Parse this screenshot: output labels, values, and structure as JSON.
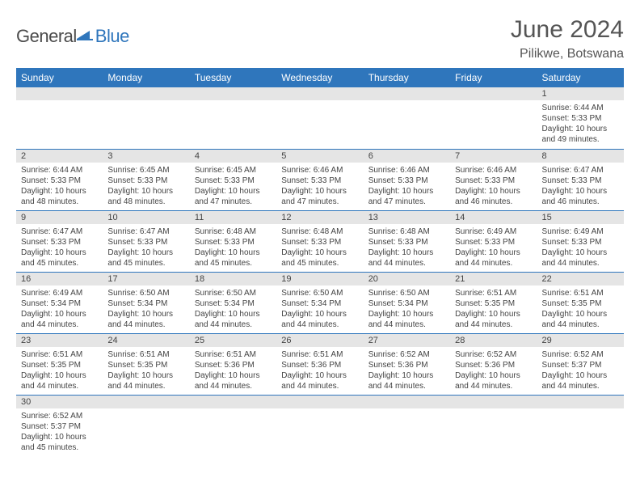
{
  "logo": {
    "part1": "General",
    "part2": "Blue"
  },
  "title": "June 2024",
  "location": "Pilikwe, Botswana",
  "colors": {
    "header_bg": "#2f76bc",
    "header_text": "#ffffff",
    "daynum_bg": "#e5e5e5",
    "cell_border": "#2f76bc",
    "text": "#444444"
  },
  "weekdays": [
    "Sunday",
    "Monday",
    "Tuesday",
    "Wednesday",
    "Thursday",
    "Friday",
    "Saturday"
  ],
  "weeks": [
    [
      {
        "n": "",
        "lines": [
          "",
          "",
          "",
          ""
        ]
      },
      {
        "n": "",
        "lines": [
          "",
          "",
          "",
          ""
        ]
      },
      {
        "n": "",
        "lines": [
          "",
          "",
          "",
          ""
        ]
      },
      {
        "n": "",
        "lines": [
          "",
          "",
          "",
          ""
        ]
      },
      {
        "n": "",
        "lines": [
          "",
          "",
          "",
          ""
        ]
      },
      {
        "n": "",
        "lines": [
          "",
          "",
          "",
          ""
        ]
      },
      {
        "n": "1",
        "lines": [
          "Sunrise: 6:44 AM",
          "Sunset: 5:33 PM",
          "Daylight: 10 hours",
          "and 49 minutes."
        ]
      }
    ],
    [
      {
        "n": "2",
        "lines": [
          "Sunrise: 6:44 AM",
          "Sunset: 5:33 PM",
          "Daylight: 10 hours",
          "and 48 minutes."
        ]
      },
      {
        "n": "3",
        "lines": [
          "Sunrise: 6:45 AM",
          "Sunset: 5:33 PM",
          "Daylight: 10 hours",
          "and 48 minutes."
        ]
      },
      {
        "n": "4",
        "lines": [
          "Sunrise: 6:45 AM",
          "Sunset: 5:33 PM",
          "Daylight: 10 hours",
          "and 47 minutes."
        ]
      },
      {
        "n": "5",
        "lines": [
          "Sunrise: 6:46 AM",
          "Sunset: 5:33 PM",
          "Daylight: 10 hours",
          "and 47 minutes."
        ]
      },
      {
        "n": "6",
        "lines": [
          "Sunrise: 6:46 AM",
          "Sunset: 5:33 PM",
          "Daylight: 10 hours",
          "and 47 minutes."
        ]
      },
      {
        "n": "7",
        "lines": [
          "Sunrise: 6:46 AM",
          "Sunset: 5:33 PM",
          "Daylight: 10 hours",
          "and 46 minutes."
        ]
      },
      {
        "n": "8",
        "lines": [
          "Sunrise: 6:47 AM",
          "Sunset: 5:33 PM",
          "Daylight: 10 hours",
          "and 46 minutes."
        ]
      }
    ],
    [
      {
        "n": "9",
        "lines": [
          "Sunrise: 6:47 AM",
          "Sunset: 5:33 PM",
          "Daylight: 10 hours",
          "and 45 minutes."
        ]
      },
      {
        "n": "10",
        "lines": [
          "Sunrise: 6:47 AM",
          "Sunset: 5:33 PM",
          "Daylight: 10 hours",
          "and 45 minutes."
        ]
      },
      {
        "n": "11",
        "lines": [
          "Sunrise: 6:48 AM",
          "Sunset: 5:33 PM",
          "Daylight: 10 hours",
          "and 45 minutes."
        ]
      },
      {
        "n": "12",
        "lines": [
          "Sunrise: 6:48 AM",
          "Sunset: 5:33 PM",
          "Daylight: 10 hours",
          "and 45 minutes."
        ]
      },
      {
        "n": "13",
        "lines": [
          "Sunrise: 6:48 AM",
          "Sunset: 5:33 PM",
          "Daylight: 10 hours",
          "and 44 minutes."
        ]
      },
      {
        "n": "14",
        "lines": [
          "Sunrise: 6:49 AM",
          "Sunset: 5:33 PM",
          "Daylight: 10 hours",
          "and 44 minutes."
        ]
      },
      {
        "n": "15",
        "lines": [
          "Sunrise: 6:49 AM",
          "Sunset: 5:33 PM",
          "Daylight: 10 hours",
          "and 44 minutes."
        ]
      }
    ],
    [
      {
        "n": "16",
        "lines": [
          "Sunrise: 6:49 AM",
          "Sunset: 5:34 PM",
          "Daylight: 10 hours",
          "and 44 minutes."
        ]
      },
      {
        "n": "17",
        "lines": [
          "Sunrise: 6:50 AM",
          "Sunset: 5:34 PM",
          "Daylight: 10 hours",
          "and 44 minutes."
        ]
      },
      {
        "n": "18",
        "lines": [
          "Sunrise: 6:50 AM",
          "Sunset: 5:34 PM",
          "Daylight: 10 hours",
          "and 44 minutes."
        ]
      },
      {
        "n": "19",
        "lines": [
          "Sunrise: 6:50 AM",
          "Sunset: 5:34 PM",
          "Daylight: 10 hours",
          "and 44 minutes."
        ]
      },
      {
        "n": "20",
        "lines": [
          "Sunrise: 6:50 AM",
          "Sunset: 5:34 PM",
          "Daylight: 10 hours",
          "and 44 minutes."
        ]
      },
      {
        "n": "21",
        "lines": [
          "Sunrise: 6:51 AM",
          "Sunset: 5:35 PM",
          "Daylight: 10 hours",
          "and 44 minutes."
        ]
      },
      {
        "n": "22",
        "lines": [
          "Sunrise: 6:51 AM",
          "Sunset: 5:35 PM",
          "Daylight: 10 hours",
          "and 44 minutes."
        ]
      }
    ],
    [
      {
        "n": "23",
        "lines": [
          "Sunrise: 6:51 AM",
          "Sunset: 5:35 PM",
          "Daylight: 10 hours",
          "and 44 minutes."
        ]
      },
      {
        "n": "24",
        "lines": [
          "Sunrise: 6:51 AM",
          "Sunset: 5:35 PM",
          "Daylight: 10 hours",
          "and 44 minutes."
        ]
      },
      {
        "n": "25",
        "lines": [
          "Sunrise: 6:51 AM",
          "Sunset: 5:36 PM",
          "Daylight: 10 hours",
          "and 44 minutes."
        ]
      },
      {
        "n": "26",
        "lines": [
          "Sunrise: 6:51 AM",
          "Sunset: 5:36 PM",
          "Daylight: 10 hours",
          "and 44 minutes."
        ]
      },
      {
        "n": "27",
        "lines": [
          "Sunrise: 6:52 AM",
          "Sunset: 5:36 PM",
          "Daylight: 10 hours",
          "and 44 minutes."
        ]
      },
      {
        "n": "28",
        "lines": [
          "Sunrise: 6:52 AM",
          "Sunset: 5:36 PM",
          "Daylight: 10 hours",
          "and 44 minutes."
        ]
      },
      {
        "n": "29",
        "lines": [
          "Sunrise: 6:52 AM",
          "Sunset: 5:37 PM",
          "Daylight: 10 hours",
          "and 44 minutes."
        ]
      }
    ],
    [
      {
        "n": "30",
        "lines": [
          "Sunrise: 6:52 AM",
          "Sunset: 5:37 PM",
          "Daylight: 10 hours",
          "and 45 minutes."
        ]
      },
      {
        "n": "",
        "lines": [
          "",
          "",
          "",
          ""
        ]
      },
      {
        "n": "",
        "lines": [
          "",
          "",
          "",
          ""
        ]
      },
      {
        "n": "",
        "lines": [
          "",
          "",
          "",
          ""
        ]
      },
      {
        "n": "",
        "lines": [
          "",
          "",
          "",
          ""
        ]
      },
      {
        "n": "",
        "lines": [
          "",
          "",
          "",
          ""
        ]
      },
      {
        "n": "",
        "lines": [
          "",
          "",
          "",
          ""
        ]
      }
    ]
  ]
}
